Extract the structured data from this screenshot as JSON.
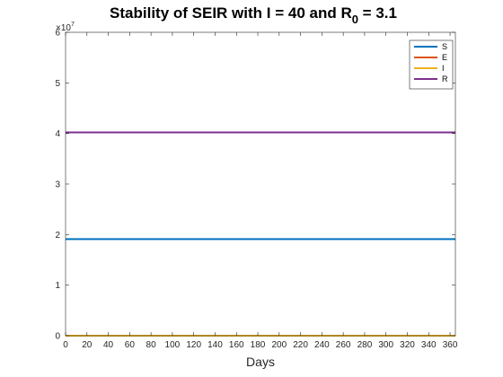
{
  "chart_data": {
    "type": "line",
    "title": {
      "prefix": "Stability of SEIR with I = 40 and R",
      "subscript": "0",
      "suffix": " = 3.1"
    },
    "xlabel": "Days",
    "ylabel": "",
    "xlim": [
      0,
      365
    ],
    "ylim": [
      0,
      60000000
    ],
    "x_ticks": [
      0,
      20,
      40,
      60,
      80,
      100,
      120,
      140,
      160,
      180,
      200,
      220,
      240,
      260,
      280,
      300,
      320,
      340,
      360
    ],
    "y_ticks": [
      0,
      1,
      2,
      3,
      4,
      5,
      6
    ],
    "y_tick_scale": {
      "base": "×10",
      "exponent": "7"
    },
    "grid": false,
    "legend_position": "top-right",
    "series": [
      {
        "name": "S",
        "color": "#0072BD",
        "x": [
          0,
          365
        ],
        "y": [
          19100000,
          19100000
        ]
      },
      {
        "name": "E",
        "color": "#D95319",
        "x": [
          0,
          365
        ],
        "y": [
          0,
          0
        ]
      },
      {
        "name": "I",
        "color": "#EDB120",
        "x": [
          0,
          365
        ],
        "y": [
          40,
          40
        ]
      },
      {
        "name": "R",
        "color": "#7E2F8E",
        "x": [
          0,
          365
        ],
        "y": [
          40200000,
          40200000
        ]
      }
    ]
  }
}
